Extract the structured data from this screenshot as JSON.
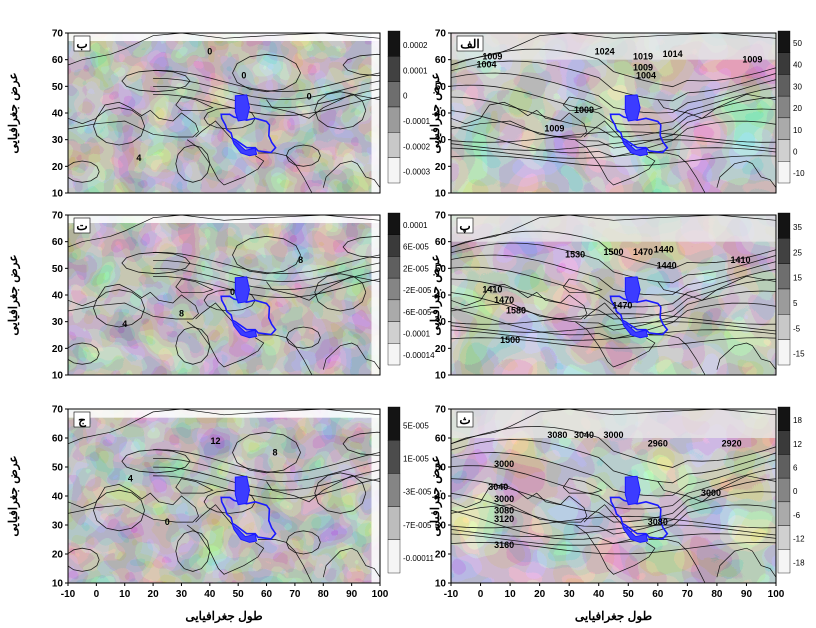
{
  "axis_titles": {
    "ylabel": "عرض جغرافیایی",
    "xlabel": "طول جغرافیایی"
  },
  "x_ticks": [
    "-10",
    "0",
    "10",
    "20",
    "30",
    "40",
    "50",
    "60",
    "70",
    "80",
    "90",
    "100"
  ],
  "y_ticks": [
    "70",
    "60",
    "50",
    "40",
    "30",
    "20",
    "10"
  ],
  "colors": {
    "panel_gray_dark": "#3a3a3a",
    "panel_gray_mid": "#777777",
    "panel_gray_light": "#b9b9b9",
    "region_fill": "#3c3cff",
    "region_stroke": "#1a1aff",
    "contour": "#000000"
  },
  "panels": [
    {
      "id": "left-top",
      "tag": "ب",
      "colorbar": [
        "0.0002",
        "0.0001",
        "0",
        "-0.0001",
        "-0.0002",
        "-0.0003"
      ],
      "contour_labels": [
        "0",
        "0",
        "4",
        "0"
      ]
    },
    {
      "id": "right-top",
      "tag": "الف",
      "colorbar": [
        "50",
        "40",
        "30",
        "20",
        "10",
        "0",
        "-10"
      ],
      "contour_labels": [
        "1024",
        "1019",
        "1014",
        "1009",
        "1009",
        "1004",
        "1009",
        "1004",
        "1009",
        "1009"
      ]
    },
    {
      "id": "left-mid",
      "tag": "ت",
      "colorbar": [
        "0.0001",
        "6E-005",
        "2E-005",
        "-2E-005",
        "-6E-005",
        "-0.0001",
        "-0.00014"
      ],
      "contour_labels": [
        "8",
        "0",
        "4",
        "8"
      ]
    },
    {
      "id": "right-mid",
      "tag": "پ",
      "colorbar": [
        "35",
        "25",
        "15",
        "5",
        "-5",
        "-15"
      ],
      "contour_labels": [
        "1530",
        "1500",
        "1470",
        "1440",
        "1410",
        "1440",
        "1410",
        "1470",
        "1580",
        "1500",
        "1470"
      ]
    },
    {
      "id": "left-bot",
      "tag": "ج",
      "colorbar": [
        "5E-005",
        "1E-005",
        "-3E-005",
        "-7E-005",
        "-0.00011"
      ],
      "contour_labels": [
        "12",
        "8",
        "4",
        "0"
      ]
    },
    {
      "id": "right-bot",
      "tag": "ث",
      "colorbar": [
        "18",
        "12",
        "6",
        "0",
        "-6",
        "-12",
        "-18"
      ],
      "contour_labels": [
        "3080",
        "3040",
        "3000",
        "2960",
        "2920",
        "3000",
        "3040",
        "3000",
        "3080",
        "3120",
        "3160",
        "3080",
        "3000"
      ]
    }
  ]
}
